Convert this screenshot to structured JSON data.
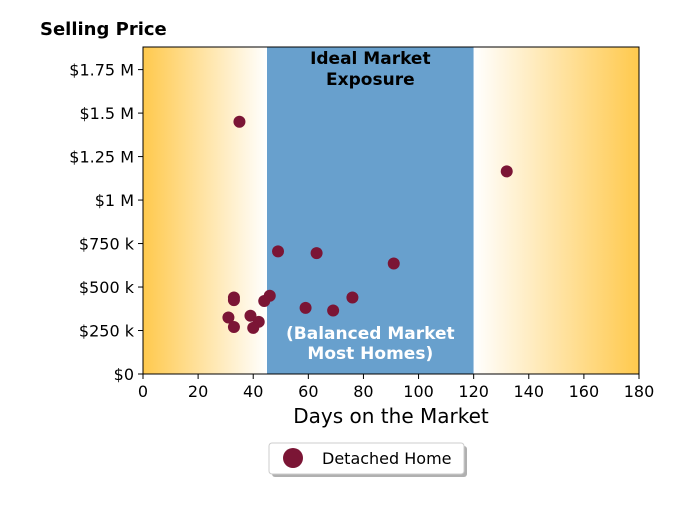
{
  "chart_data": {
    "type": "scatter",
    "title": "Selling Price",
    "xlabel": "Days on the Market",
    "ylabel": "",
    "xlim": [
      0,
      180
    ],
    "ylim": [
      0,
      1.88
    ],
    "x_ticks": [
      0,
      20,
      40,
      60,
      80,
      100,
      120,
      140,
      160,
      180
    ],
    "x_tick_labels": [
      "0",
      "20",
      "40",
      "60",
      "80",
      "100",
      "120",
      "140",
      "160",
      "180"
    ],
    "y_ticks": [
      0,
      0.25,
      0.5,
      0.75,
      1.0,
      1.25,
      1.5,
      1.75
    ],
    "y_tick_labels": [
      "$0",
      "$250 k",
      "$500 k",
      "$750 k",
      "$1 M",
      "$1.25 M",
      "$1.5 M",
      "$1.75 M"
    ],
    "grid": false,
    "legend_position": "bottom-center",
    "zones": {
      "balanced": {
        "x_start": 45,
        "x_end": 120,
        "color": "#68a0cd"
      },
      "outer_color": "#ffc94d",
      "top_label_lines": [
        "Ideal Market",
        "Exposure"
      ],
      "bottom_label_lines": [
        "(Balanced Market",
        "Most Homes)"
      ]
    },
    "series": [
      {
        "name": "Detached Home",
        "color": "#7b1535",
        "points": [
          {
            "x": 35,
            "y": 1.45
          },
          {
            "x": 132,
            "y": 1.165
          },
          {
            "x": 49,
            "y": 0.705
          },
          {
            "x": 63,
            "y": 0.695
          },
          {
            "x": 91,
            "y": 0.635
          },
          {
            "x": 46,
            "y": 0.45
          },
          {
            "x": 33,
            "y": 0.44
          },
          {
            "x": 33,
            "y": 0.425
          },
          {
            "x": 44,
            "y": 0.42
          },
          {
            "x": 76,
            "y": 0.44
          },
          {
            "x": 59,
            "y": 0.38
          },
          {
            "x": 69,
            "y": 0.365
          },
          {
            "x": 39,
            "y": 0.335
          },
          {
            "x": 31,
            "y": 0.325
          },
          {
            "x": 42,
            "y": 0.3
          },
          {
            "x": 33,
            "y": 0.27
          },
          {
            "x": 40,
            "y": 0.265
          }
        ]
      }
    ]
  }
}
